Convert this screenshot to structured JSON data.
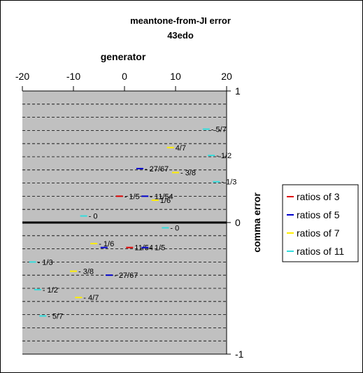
{
  "chart_data": {
    "type": "scatter",
    "title": "meantone-from-JI error",
    "subtitle": "43edo",
    "xlabel": "generator",
    "ylabel": "comma error",
    "x_ticks": [
      "-20",
      "-10",
      "0",
      "10",
      "20"
    ],
    "y_ticks": [
      "1",
      "0",
      "-1"
    ],
    "xlim": [
      -20,
      20
    ],
    "ylim": [
      -1,
      1
    ],
    "grid": "dashed horizontal",
    "legend_position": "right",
    "series": [
      {
        "name": "ratios of 3",
        "color": "#e00000",
        "points": [
          {
            "x": -1,
            "y": 0.2,
            "label": "- 1/5"
          },
          {
            "x": 1,
            "y": -0.19,
            "label": "11/54"
          }
        ]
      },
      {
        "name": "ratios of 5",
        "color": "#0000cc",
        "points": [
          {
            "x": 3,
            "y": 0.41,
            "label": "- 27/67"
          },
          {
            "x": 4,
            "y": 0.2,
            "label": "- 11/54"
          },
          {
            "x": -4,
            "y": -0.19,
            "label": ""
          },
          {
            "x": 4,
            "y": -0.19,
            "label": "- 1/5"
          },
          {
            "x": -3,
            "y": -0.4,
            "label": "- 27/67"
          }
        ]
      },
      {
        "name": "ratios of 7",
        "color": "#ffee00",
        "points": [
          {
            "x": 9,
            "y": 0.57,
            "label": "4/7"
          },
          {
            "x": 10,
            "y": 0.38,
            "label": "- 3/8"
          },
          {
            "x": 6,
            "y": 0.17,
            "label": "1/6"
          },
          {
            "x": -6,
            "y": -0.16,
            "label": "- 1/6"
          },
          {
            "x": -10,
            "y": -0.37,
            "label": "- 3/8"
          },
          {
            "x": -9,
            "y": -0.57,
            "label": "- 4/7"
          }
        ]
      },
      {
        "name": "ratios of 11",
        "color": "#33dddd",
        "points": [
          {
            "x": 16,
            "y": 0.71,
            "label": "- 5/7"
          },
          {
            "x": 17,
            "y": 0.51,
            "label": "- 1/2"
          },
          {
            "x": 18,
            "y": 0.31,
            "label": "- 1/3"
          },
          {
            "x": -8,
            "y": 0.05,
            "label": "- 0"
          },
          {
            "x": 8,
            "y": -0.04,
            "label": "- 0"
          },
          {
            "x": -18,
            "y": -0.3,
            "label": "- 1/3"
          },
          {
            "x": -17,
            "y": -0.51,
            "label": "- 1/2"
          },
          {
            "x": -16,
            "y": -0.71,
            "label": "- 5/7"
          }
        ]
      }
    ]
  }
}
